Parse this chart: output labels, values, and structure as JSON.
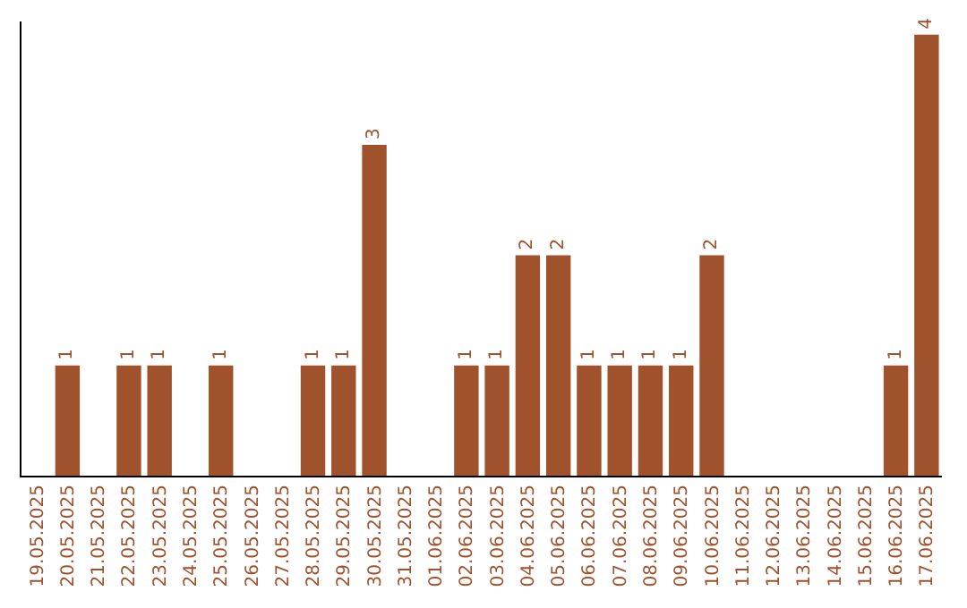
{
  "chart_data": {
    "type": "bar",
    "categories": [
      "19.05.2025",
      "20.05.2025",
      "21.05.2025",
      "22.05.2025",
      "23.05.2025",
      "24.05.2025",
      "25.05.2025",
      "26.05.2025",
      "27.05.2025",
      "28.05.2025",
      "29.05.2025",
      "30.05.2025",
      "31.05.2025",
      "01.06.2025",
      "02.06.2025",
      "03.06.2025",
      "04.06.2025",
      "05.06.2025",
      "06.06.2025",
      "07.06.2025",
      "08.06.2025",
      "09.06.2025",
      "10.06.2025",
      "11.06.2025",
      "12.06.2025",
      "13.06.2025",
      "14.06.2025",
      "15.06.2025",
      "16.06.2025",
      "17.06.2025"
    ],
    "values": [
      0,
      1,
      0,
      1,
      1,
      0,
      1,
      0,
      0,
      1,
      1,
      3,
      0,
      0,
      1,
      1,
      2,
      2,
      1,
      1,
      1,
      1,
      2,
      0,
      0,
      0,
      0,
      0,
      1,
      4
    ],
    "value_labels": [
      null,
      "1",
      null,
      "1",
      "1",
      null,
      "1",
      null,
      null,
      "1",
      "1",
      "3",
      null,
      null,
      "1",
      "1",
      "2",
      "2",
      "1",
      "1",
      "1",
      "1",
      "2",
      null,
      null,
      null,
      null,
      null,
      "1",
      "4"
    ],
    "color": "#a0522d"
  }
}
